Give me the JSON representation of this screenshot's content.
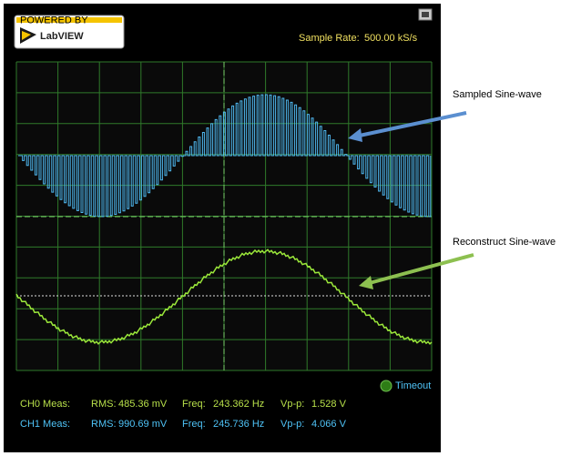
{
  "header": {
    "logo_small": "POWERED BY",
    "logo": "LabVIEW",
    "sample_rate_label": "Sample Rate:",
    "sample_rate": "500.00 kS/s"
  },
  "annotations": [
    "Sampled Sine-wave",
    "Reconstruct Sine-wave"
  ],
  "indicator": "Timeout",
  "measurements": [
    {
      "channel": "CH0 Meas:",
      "rms_label": "RMS:",
      "rms": "485.36 mV",
      "freq_label": "Freq:",
      "freq": "243.362 Hz",
      "vpp_label": "Vp-p:",
      "vpp": "1.528 V"
    },
    {
      "channel": "CH1 Meas:",
      "rms_label": "RMS:",
      "rms": "990.69 mV",
      "freq_label": "Freq:",
      "freq": "245.736 Hz",
      "vpp_label": "Vp-p:",
      "vpp": "4.066 V"
    }
  ]
}
